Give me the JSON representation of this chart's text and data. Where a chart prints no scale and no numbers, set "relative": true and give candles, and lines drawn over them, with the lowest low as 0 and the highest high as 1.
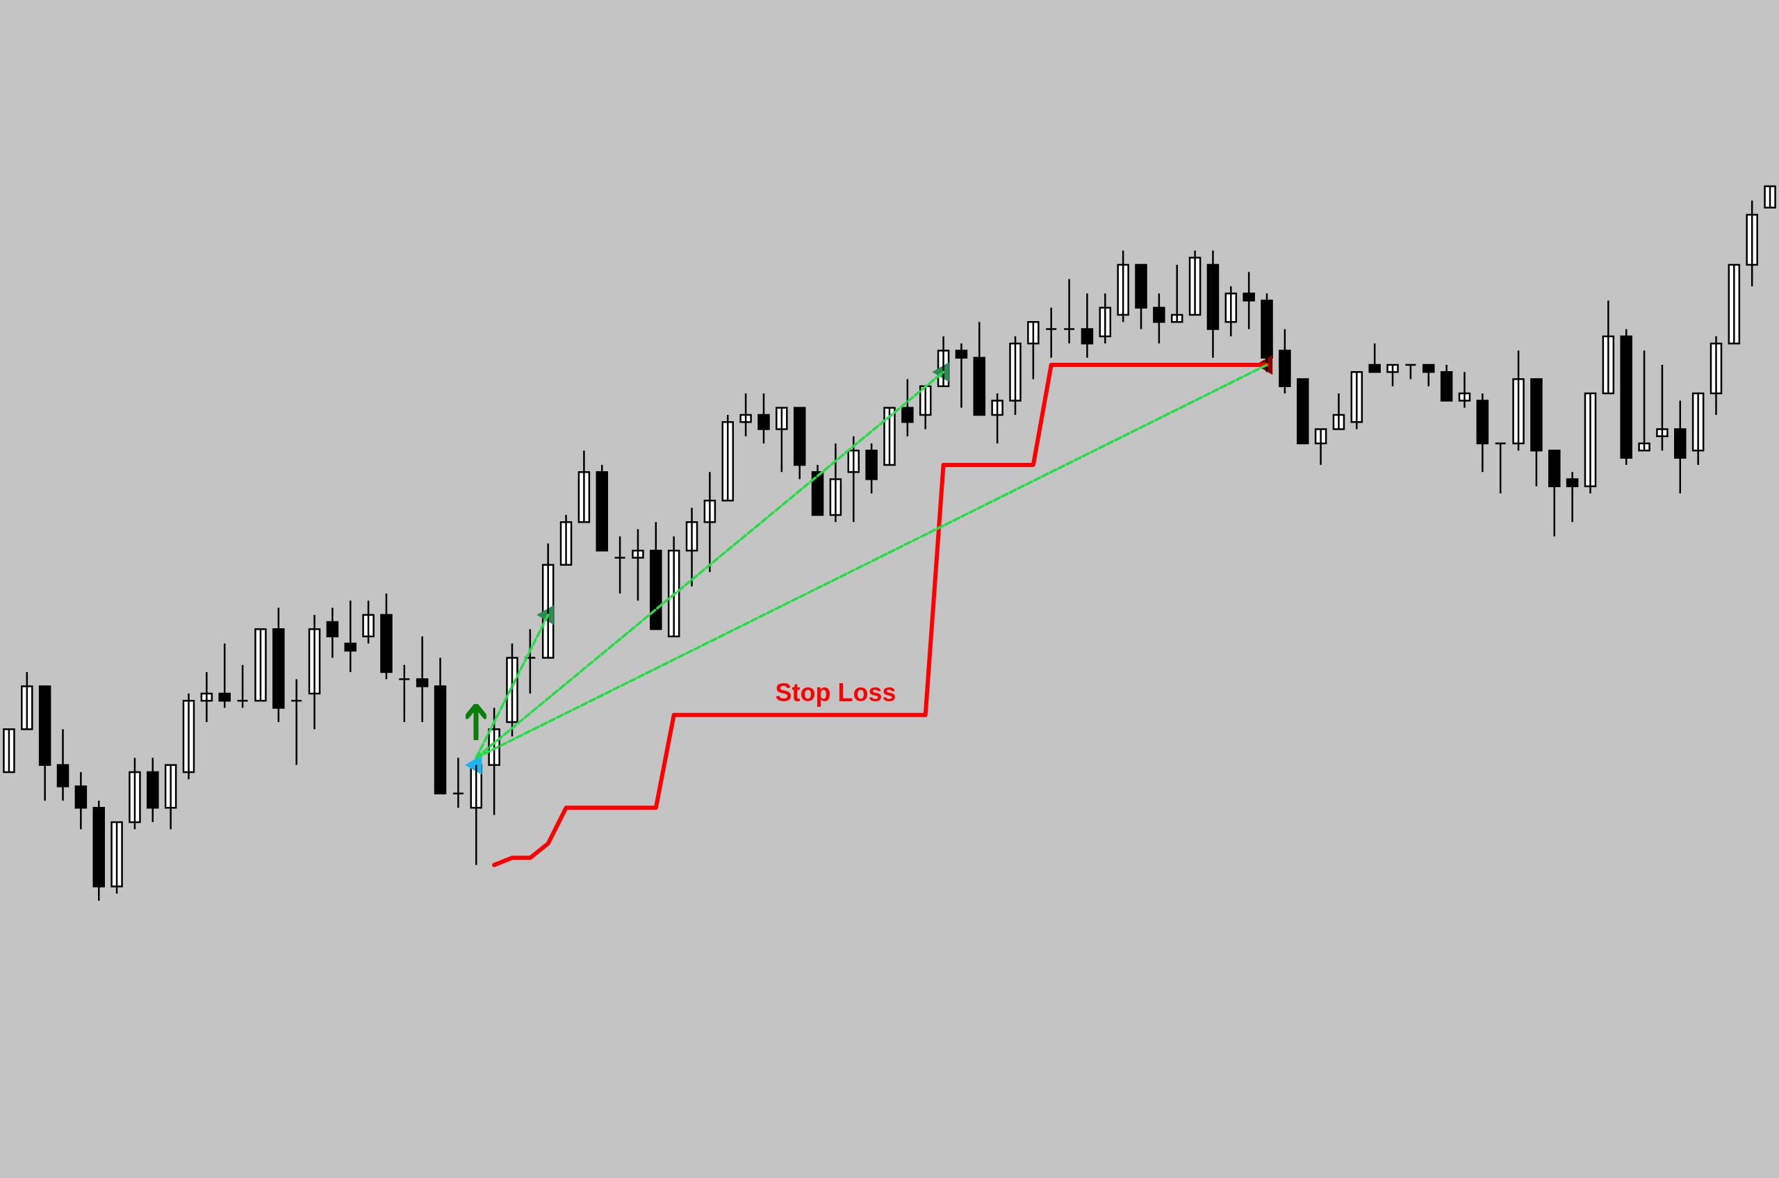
{
  "chart_data": {
    "type": "candlestick",
    "relative": true,
    "color": "#000000",
    "categories": [
      null,
      null,
      null,
      null,
      null,
      null,
      null,
      null,
      null,
      null,
      null,
      null,
      null,
      null,
      null,
      null,
      null,
      null,
      null,
      null,
      null,
      null,
      null,
      null,
      null,
      null,
      null,
      null,
      null,
      null,
      null,
      null,
      null,
      null,
      null,
      null,
      null,
      null,
      null,
      null,
      null,
      null,
      null,
      null,
      null,
      null,
      null,
      null,
      null,
      null,
      null,
      null,
      null,
      null,
      null,
      null,
      null,
      null,
      null,
      null,
      null,
      null,
      null,
      null,
      null,
      null,
      null,
      null,
      null,
      null,
      null,
      null,
      null,
      null,
      null,
      null,
      null,
      null,
      null,
      null,
      null,
      null,
      null,
      null,
      null,
      null,
      null,
      null,
      null,
      null,
      null,
      null,
      null,
      null,
      null,
      null,
      null,
      null,
      null
    ],
    "ohlc": [
      [
        0.18,
        0.24,
        0.18,
        0.24
      ],
      [
        0.24,
        0.32,
        0.24,
        0.3
      ],
      [
        0.3,
        0.3,
        0.14,
        0.19
      ],
      [
        0.19,
        0.24,
        0.14,
        0.16
      ],
      [
        0.16,
        0.18,
        0.1,
        0.13
      ],
      [
        0.13,
        0.14,
        0,
        0.02
      ],
      [
        0.02,
        0.11,
        0.01,
        0.11
      ],
      [
        0.11,
        0.2,
        0.1,
        0.18
      ],
      [
        0.18,
        0.2,
        0.11,
        0.13
      ],
      [
        0.13,
        0.19,
        0.1,
        0.19
      ],
      [
        0.18,
        0.29,
        0.17,
        0.28
      ],
      [
        0.28,
        0.32,
        0.25,
        0.29
      ],
      [
        0.29,
        0.36,
        0.27,
        0.28
      ],
      [
        0.28,
        0.33,
        0.27,
        0.28
      ],
      [
        0.28,
        0.38,
        0.28,
        0.38
      ],
      [
        0.38,
        0.41,
        0.25,
        0.27
      ],
      [
        0.28,
        0.31,
        0.19,
        0.28
      ],
      [
        0.29,
        0.4,
        0.24,
        0.38
      ],
      [
        0.39,
        0.41,
        0.34,
        0.37
      ],
      [
        0.36,
        0.42,
        0.32,
        0.35
      ],
      [
        0.37,
        0.42,
        0.36,
        0.4
      ],
      [
        0.4,
        0.43,
        0.31,
        0.32
      ],
      [
        0.31,
        0.33,
        0.25,
        0.31
      ],
      [
        0.31,
        0.37,
        0.25,
        0.3
      ],
      [
        0.3,
        0.34,
        0.15,
        0.15
      ],
      [
        0.15,
        0.2,
        0.13,
        0.15
      ],
      [
        0.13,
        0.19,
        0.05,
        0.19
      ],
      [
        0.19,
        0.27,
        0.12,
        0.24
      ],
      [
        0.25,
        0.36,
        0.23,
        0.34
      ],
      [
        0.34,
        0.38,
        0.29,
        0.34
      ],
      [
        0.34,
        0.5,
        0.34,
        0.47
      ],
      [
        0.47,
        0.54,
        0.47,
        0.53
      ],
      [
        0.53,
        0.63,
        0.53,
        0.6
      ],
      [
        0.6,
        0.61,
        0.49,
        0.49
      ],
      [
        0.48,
        0.51,
        0.43,
        0.48
      ],
      [
        0.48,
        0.52,
        0.42,
        0.49
      ],
      [
        0.49,
        0.53,
        0.38,
        0.38
      ],
      [
        0.37,
        0.51,
        0.37,
        0.49
      ],
      [
        0.49,
        0.55,
        0.44,
        0.53
      ],
      [
        0.53,
        0.6,
        0.46,
        0.56
      ],
      [
        0.56,
        0.68,
        0.56,
        0.67
      ],
      [
        0.67,
        0.71,
        0.65,
        0.68
      ],
      [
        0.68,
        0.71,
        0.64,
        0.66
      ],
      [
        0.66,
        0.69,
        0.6,
        0.69
      ],
      [
        0.69,
        0.69,
        0.59,
        0.61
      ],
      [
        0.6,
        0.61,
        0.54,
        0.54
      ],
      [
        0.54,
        0.64,
        0.53,
        0.59
      ],
      [
        0.6,
        0.65,
        0.53,
        0.63
      ],
      [
        0.63,
        0.64,
        0.57,
        0.59
      ],
      [
        0.61,
        0.69,
        0.61,
        0.69
      ],
      [
        0.69,
        0.73,
        0.65,
        0.67
      ],
      [
        0.68,
        0.72,
        0.66,
        0.72
      ],
      [
        0.72,
        0.79,
        0.72,
        0.77
      ],
      [
        0.77,
        0.78,
        0.69,
        0.76
      ],
      [
        0.76,
        0.81,
        0.68,
        0.68
      ],
      [
        0.68,
        0.71,
        0.64,
        0.7
      ],
      [
        0.7,
        0.79,
        0.68,
        0.78
      ],
      [
        0.78,
        0.81,
        0.73,
        0.81
      ],
      [
        0.8,
        0.83,
        0.76,
        0.8
      ],
      [
        0.8,
        0.87,
        0.78,
        0.8
      ],
      [
        0.8,
        0.85,
        0.76,
        0.78
      ],
      [
        0.79,
        0.85,
        0.78,
        0.83
      ],
      [
        0.82,
        0.91,
        0.81,
        0.89
      ],
      [
        0.89,
        0.89,
        0.8,
        0.83
      ],
      [
        0.83,
        0.85,
        0.78,
        0.81
      ],
      [
        0.81,
        0.89,
        0.81,
        0.82
      ],
      [
        0.82,
        0.91,
        0.82,
        0.9
      ],
      [
        0.89,
        0.91,
        0.76,
        0.8
      ],
      [
        0.81,
        0.86,
        0.79,
        0.85
      ],
      [
        0.85,
        0.88,
        0.8,
        0.84
      ],
      [
        0.84,
        0.85,
        0.74,
        0.76
      ],
      [
        0.77,
        0.8,
        0.71,
        0.72
      ],
      [
        0.73,
        0.73,
        0.64,
        0.64
      ],
      [
        0.64,
        0.66,
        0.61,
        0.66
      ],
      [
        0.66,
        0.71,
        0.66,
        0.68
      ],
      [
        0.67,
        0.74,
        0.66,
        0.74
      ],
      [
        0.75,
        0.78,
        0.74,
        0.74
      ],
      [
        0.74,
        0.75,
        0.72,
        0.75
      ],
      [
        0.75,
        0.75,
        0.73,
        0.75
      ],
      [
        0.75,
        0.75,
        0.72,
        0.74
      ],
      [
        0.74,
        0.75,
        0.7,
        0.7
      ],
      [
        0.7,
        0.74,
        0.69,
        0.71
      ],
      [
        0.7,
        0.71,
        0.6,
        0.64
      ],
      [
        0.64,
        0.64,
        0.57,
        0.64
      ],
      [
        0.64,
        0.77,
        0.63,
        0.73
      ],
      [
        0.73,
        0.73,
        0.58,
        0.63
      ],
      [
        0.63,
        0.63,
        0.51,
        0.58
      ],
      [
        0.59,
        0.6,
        0.53,
        0.58
      ],
      [
        0.58,
        0.71,
        0.57,
        0.71
      ],
      [
        0.71,
        0.84,
        0.71,
        0.79
      ],
      [
        0.79,
        0.8,
        0.61,
        0.62
      ],
      [
        0.63,
        0.77,
        0.63,
        0.64
      ],
      [
        0.65,
        0.75,
        0.63,
        0.66
      ],
      [
        0.66,
        0.7,
        0.57,
        0.62
      ],
      [
        0.63,
        0.71,
        0.61,
        0.71
      ],
      [
        0.71,
        0.79,
        0.68,
        0.78
      ],
      [
        0.78,
        0.89,
        0.78,
        0.89
      ],
      [
        0.89,
        0.98,
        0.86,
        0.96
      ],
      [
        0.97,
        1,
        0.97,
        1
      ]
    ],
    "series": [
      {
        "name": "Stop Loss",
        "type": "line",
        "line_style": "solid",
        "color": "#ff0000",
        "values": [
          null,
          null,
          null,
          null,
          null,
          null,
          null,
          null,
          null,
          null,
          null,
          null,
          null,
          null,
          null,
          null,
          null,
          null,
          null,
          null,
          null,
          null,
          null,
          null,
          null,
          null,
          null,
          0.05,
          0.06,
          0.06,
          0.08,
          0.13,
          0.13,
          0.13,
          0.13,
          0.13,
          0.13,
          0.26,
          0.26,
          0.26,
          0.26,
          0.26,
          0.26,
          0.26,
          0.26,
          0.26,
          0.26,
          0.26,
          0.26,
          0.26,
          0.26,
          0.26,
          0.61,
          0.61,
          0.61,
          0.61,
          0.61,
          0.61,
          0.75,
          0.75,
          0.75,
          0.75,
          0.75,
          0.75,
          0.75,
          0.75,
          0.75,
          0.75,
          0.75,
          0.75,
          0.75,
          null,
          null,
          null,
          null,
          null,
          null,
          null,
          null,
          null,
          null,
          null,
          null,
          null,
          null,
          null,
          null,
          null,
          null,
          null,
          null,
          null,
          null,
          null,
          null,
          null,
          null,
          null,
          null
        ]
      },
      {
        "type": "line",
        "line_style": "dashed",
        "color": "#22dd44",
        "values": [
          null,
          null,
          null,
          null,
          null,
          null,
          null,
          null,
          null,
          null,
          null,
          null,
          null,
          null,
          null,
          null,
          null,
          null,
          null,
          null,
          null,
          null,
          null,
          null,
          null,
          null,
          0.2,
          null,
          null,
          null,
          0.4,
          null,
          null,
          null,
          null,
          null,
          null,
          null,
          null,
          null,
          null,
          null,
          null,
          null,
          null,
          null,
          null,
          null,
          null,
          null,
          null,
          null,
          null,
          null,
          null,
          null,
          null,
          null,
          null,
          null,
          null,
          null,
          null,
          null,
          null,
          null,
          null,
          null,
          null,
          null,
          null,
          null,
          null,
          null,
          null,
          null,
          null,
          null,
          null,
          null,
          null,
          null,
          null,
          null,
          null,
          null,
          null,
          null,
          null,
          null,
          null,
          null,
          null,
          null,
          null,
          null,
          null,
          null,
          null
        ]
      },
      {
        "type": "line",
        "line_style": "dashed",
        "color": "#22dd44",
        "values": [
          null,
          null,
          null,
          null,
          null,
          null,
          null,
          null,
          null,
          null,
          null,
          null,
          null,
          null,
          null,
          null,
          null,
          null,
          null,
          null,
          null,
          null,
          null,
          null,
          null,
          null,
          0.2,
          null,
          null,
          null,
          null,
          null,
          null,
          null,
          null,
          null,
          null,
          null,
          null,
          null,
          null,
          null,
          null,
          null,
          null,
          null,
          null,
          null,
          null,
          null,
          null,
          null,
          0.74,
          null,
          null,
          null,
          null,
          null,
          null,
          null,
          null,
          null,
          null,
          null,
          null,
          null,
          null,
          null,
          null,
          null,
          null,
          null,
          null,
          null,
          null,
          null,
          null,
          null,
          null,
          null,
          null,
          null,
          null,
          null,
          null,
          null,
          null,
          null,
          null,
          null,
          null,
          null,
          null,
          null,
          null,
          null,
          null,
          null,
          null
        ]
      },
      {
        "type": "line",
        "line_style": "dashed",
        "color": "#22dd44",
        "values": [
          null,
          null,
          null,
          null,
          null,
          null,
          null,
          null,
          null,
          null,
          null,
          null,
          null,
          null,
          null,
          null,
          null,
          null,
          null,
          null,
          null,
          null,
          null,
          null,
          null,
          null,
          0.2,
          null,
          null,
          null,
          null,
          null,
          null,
          null,
          null,
          null,
          null,
          null,
          null,
          null,
          null,
          null,
          null,
          null,
          null,
          null,
          null,
          null,
          null,
          null,
          null,
          null,
          null,
          null,
          null,
          null,
          null,
          null,
          null,
          null,
          null,
          null,
          null,
          null,
          null,
          null,
          null,
          null,
          null,
          null,
          0.75,
          null,
          null,
          null,
          null,
          null,
          null,
          null,
          null,
          null,
          null,
          null,
          null,
          null,
          null,
          null,
          null,
          null,
          null,
          null,
          null,
          null,
          null,
          null,
          null,
          null,
          null,
          null,
          null
        ]
      },
      {
        "type": "scatter",
        "marker": "triangle",
        "color": "#1eb4f0",
        "values": [
          null,
          null,
          null,
          null,
          null,
          null,
          null,
          null,
          null,
          null,
          null,
          null,
          null,
          null,
          null,
          null,
          null,
          null,
          null,
          null,
          null,
          null,
          null,
          null,
          null,
          null,
          0.19,
          null,
          null,
          null,
          null,
          null,
          null,
          null,
          null,
          null,
          null,
          null,
          null,
          null,
          null,
          null,
          null,
          null,
          null,
          null,
          null,
          null,
          null,
          null,
          null,
          null,
          null,
          null,
          null,
          null,
          null,
          null,
          null,
          null,
          null,
          null,
          null,
          null,
          null,
          null,
          null,
          null,
          null,
          null,
          null,
          null,
          null,
          null,
          null,
          null,
          null,
          null,
          null,
          null,
          null,
          null,
          null,
          null,
          null,
          null,
          null,
          null,
          null,
          null,
          null,
          null,
          null,
          null,
          null,
          null,
          null,
          null,
          null
        ]
      },
      {
        "type": "scatter",
        "marker": "triangle",
        "color": "#2e8b57",
        "values": [
          null,
          null,
          null,
          null,
          null,
          null,
          null,
          null,
          null,
          null,
          null,
          null,
          null,
          null,
          null,
          null,
          null,
          null,
          null,
          null,
          null,
          null,
          null,
          null,
          null,
          null,
          null,
          null,
          null,
          null,
          0.4,
          null,
          null,
          null,
          null,
          null,
          null,
          null,
          null,
          null,
          null,
          null,
          null,
          null,
          null,
          null,
          null,
          null,
          null,
          null,
          null,
          null,
          0.74,
          null,
          null,
          null,
          null,
          null,
          null,
          null,
          null,
          null,
          null,
          null,
          null,
          null,
          null,
          null,
          null,
          null,
          null,
          null,
          null,
          null,
          null,
          null,
          null,
          null,
          null,
          null,
          null,
          null,
          null,
          null,
          null,
          null,
          null,
          null,
          null,
          null,
          null,
          null,
          null,
          null,
          null,
          null,
          null,
          null,
          null
        ]
      },
      {
        "type": "scatter",
        "marker": "triangle",
        "color": "#8b0000",
        "values": [
          null,
          null,
          null,
          null,
          null,
          null,
          null,
          null,
          null,
          null,
          null,
          null,
          null,
          null,
          null,
          null,
          null,
          null,
          null,
          null,
          null,
          null,
          null,
          null,
          null,
          null,
          null,
          null,
          null,
          null,
          null,
          null,
          null,
          null,
          null,
          null,
          null,
          null,
          null,
          null,
          null,
          null,
          null,
          null,
          null,
          null,
          null,
          null,
          null,
          null,
          null,
          null,
          null,
          null,
          null,
          null,
          null,
          null,
          null,
          null,
          null,
          null,
          null,
          null,
          null,
          null,
          null,
          null,
          null,
          null,
          0.75,
          null,
          null,
          null,
          null,
          null,
          null,
          null,
          null,
          null,
          null,
          null,
          null,
          null,
          null,
          null,
          null,
          null,
          null,
          null,
          null,
          null,
          null,
          null,
          null,
          null,
          null,
          null,
          null
        ]
      }
    ]
  }
}
